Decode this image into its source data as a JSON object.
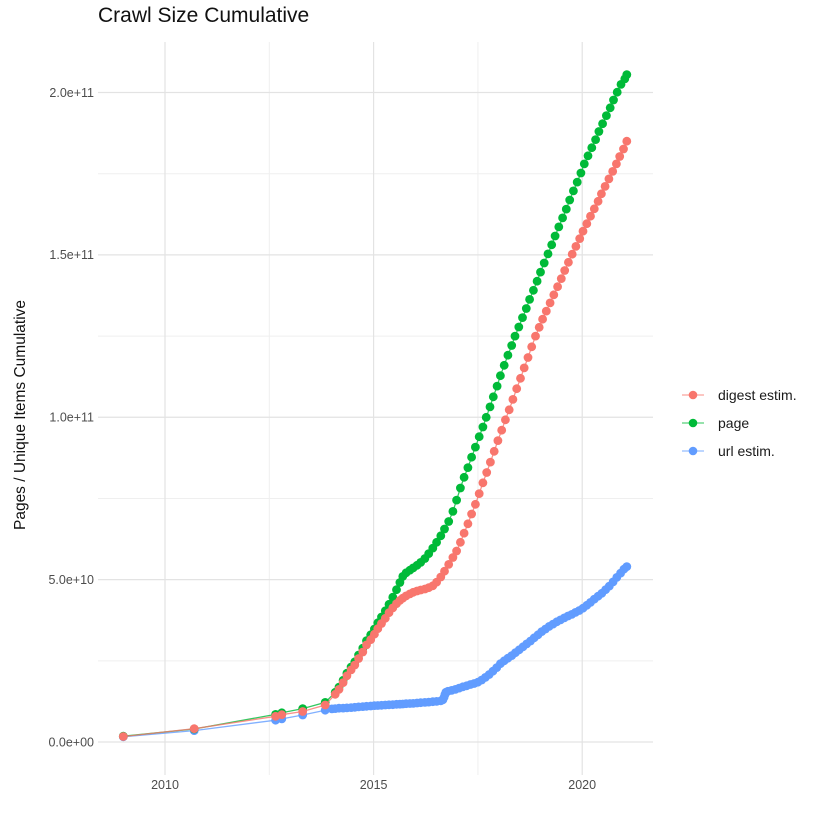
{
  "chart_data": {
    "type": "scatter",
    "title": "Crawl Size Cumulative",
    "xlabel": "",
    "ylabel": "Pages / Unique Items Cumulative",
    "value_units": "billions (1e9) of pages / unique items",
    "grid": true,
    "legend_position": "right",
    "x_axis": {
      "ticks": [
        {
          "label": "2010",
          "value": 2010
        },
        {
          "label": "2015",
          "value": 2015
        },
        {
          "label": "2020",
          "value": 2020
        }
      ],
      "minor": [
        2012.5,
        2017.5
      ],
      "range": [
        2008.4,
        2021.75
      ]
    },
    "y_axis": {
      "ticks": [
        {
          "label": "0.0e+00",
          "value": 0
        },
        {
          "label": "5.0e+10",
          "value": 50
        },
        {
          "label": "1.0e+11",
          "value": 100
        },
        {
          "label": "1.5e+11",
          "value": 150
        },
        {
          "label": "2.0e+11",
          "value": 200
        }
      ],
      "minor": [
        25,
        75,
        125,
        175
      ],
      "range": [
        -10,
        215
      ]
    },
    "series": [
      {
        "name": "digest estim.",
        "color": "#F8766D",
        "points": [
          [
            2009.0,
            1.7
          ],
          [
            2010.7,
            4.1
          ],
          [
            2012.65,
            7.9
          ],
          [
            2012.8,
            8.4
          ],
          [
            2013.3,
            9.4
          ],
          [
            2013.84,
            11.4
          ],
          [
            2014.08,
            14.7
          ],
          [
            2014.17,
            16.2
          ],
          [
            2014.27,
            18.3
          ],
          [
            2014.36,
            20.4
          ],
          [
            2014.46,
            22.2
          ],
          [
            2014.55,
            23.7
          ],
          [
            2014.64,
            25.7
          ],
          [
            2014.74,
            27.7
          ],
          [
            2014.83,
            29.9
          ],
          [
            2014.93,
            31.5
          ],
          [
            2015.02,
            33.2
          ],
          [
            2015.1,
            34.9
          ],
          [
            2015.19,
            36.5
          ],
          [
            2015.28,
            38.1
          ],
          [
            2015.37,
            39.8
          ],
          [
            2015.46,
            41.3
          ],
          [
            2015.55,
            42.6
          ],
          [
            2015.63,
            43.6
          ],
          [
            2015.7,
            44.3
          ],
          [
            2015.78,
            45.0
          ],
          [
            2015.87,
            45.6
          ],
          [
            2015.95,
            46.1
          ],
          [
            2016.04,
            46.5
          ],
          [
            2016.13,
            46.8
          ],
          [
            2016.23,
            47.1
          ],
          [
            2016.32,
            47.5
          ],
          [
            2016.42,
            48.1
          ],
          [
            2016.51,
            49.2
          ],
          [
            2016.61,
            50.8
          ],
          [
            2016.7,
            52.6
          ],
          [
            2016.8,
            54.7
          ],
          [
            2016.9,
            56.8
          ],
          [
            2016.99,
            58.8
          ],
          [
            2017.08,
            61.5
          ],
          [
            2017.17,
            64.3
          ],
          [
            2017.26,
            67.2
          ],
          [
            2017.35,
            70.2
          ],
          [
            2017.44,
            73.2
          ],
          [
            2017.53,
            76.5
          ],
          [
            2017.62,
            79.8
          ],
          [
            2017.71,
            83.0
          ],
          [
            2017.8,
            86.2
          ],
          [
            2017.89,
            89.5
          ],
          [
            2017.98,
            92.8
          ],
          [
            2018.07,
            96.0
          ],
          [
            2018.16,
            99.2
          ],
          [
            2018.25,
            102.3
          ],
          [
            2018.34,
            105.5
          ],
          [
            2018.43,
            108.8
          ],
          [
            2018.52,
            112.0
          ],
          [
            2018.61,
            115.2
          ],
          [
            2018.7,
            118.4
          ],
          [
            2018.79,
            121.7
          ],
          [
            2018.88,
            125.0
          ],
          [
            2018.97,
            127.7
          ],
          [
            2019.05,
            130.2
          ],
          [
            2019.14,
            132.7
          ],
          [
            2019.23,
            135.2
          ],
          [
            2019.32,
            137.7
          ],
          [
            2019.41,
            140.2
          ],
          [
            2019.5,
            142.7
          ],
          [
            2019.58,
            145.2
          ],
          [
            2019.67,
            147.7
          ],
          [
            2019.76,
            150.2
          ],
          [
            2019.85,
            152.6
          ],
          [
            2019.94,
            155.0
          ],
          [
            2020.02,
            157.3
          ],
          [
            2020.11,
            159.6
          ],
          [
            2020.2,
            161.9
          ],
          [
            2020.29,
            164.2
          ],
          [
            2020.38,
            166.5
          ],
          [
            2020.46,
            168.8
          ],
          [
            2020.55,
            171.1
          ],
          [
            2020.64,
            173.4
          ],
          [
            2020.73,
            175.7
          ],
          [
            2020.82,
            178.0
          ],
          [
            2020.9,
            180.3
          ],
          [
            2020.99,
            182.6
          ],
          [
            2021.07,
            185.0
          ]
        ]
      },
      {
        "name": "page",
        "color": "#00BA38",
        "points": [
          [
            2009.0,
            1.8
          ],
          [
            2010.7,
            4.0
          ],
          [
            2012.65,
            8.5
          ],
          [
            2012.8,
            9.0
          ],
          [
            2013.3,
            10.3
          ],
          [
            2013.84,
            12.2
          ],
          [
            2014.08,
            15.3
          ],
          [
            2014.17,
            16.9
          ],
          [
            2014.27,
            19.0
          ],
          [
            2014.36,
            21.2
          ],
          [
            2014.46,
            23.1
          ],
          [
            2014.55,
            24.7
          ],
          [
            2014.64,
            26.8
          ],
          [
            2014.74,
            28.9
          ],
          [
            2014.83,
            31.2
          ],
          [
            2014.93,
            33.0
          ],
          [
            2015.02,
            34.8
          ],
          [
            2015.1,
            36.7
          ],
          [
            2015.19,
            38.5
          ],
          [
            2015.28,
            40.4
          ],
          [
            2015.37,
            42.4
          ],
          [
            2015.46,
            44.6
          ],
          [
            2015.55,
            46.9
          ],
          [
            2015.63,
            49.1
          ],
          [
            2015.7,
            51.0
          ],
          [
            2015.78,
            52.1
          ],
          [
            2015.87,
            52.9
          ],
          [
            2015.95,
            53.6
          ],
          [
            2016.04,
            54.4
          ],
          [
            2016.13,
            55.3
          ],
          [
            2016.23,
            56.5
          ],
          [
            2016.32,
            58.0
          ],
          [
            2016.42,
            59.7
          ],
          [
            2016.51,
            61.5
          ],
          [
            2016.61,
            63.5
          ],
          [
            2016.7,
            65.6
          ],
          [
            2016.8,
            67.9
          ],
          [
            2016.9,
            71.0
          ],
          [
            2016.99,
            74.5
          ],
          [
            2017.08,
            78.2
          ],
          [
            2017.17,
            81.5
          ],
          [
            2017.26,
            84.5
          ],
          [
            2017.35,
            87.7
          ],
          [
            2017.44,
            90.8
          ],
          [
            2017.53,
            94.0
          ],
          [
            2017.62,
            97.0
          ],
          [
            2017.7,
            100.0
          ],
          [
            2017.79,
            103.2
          ],
          [
            2017.87,
            106.3
          ],
          [
            2017.96,
            109.6
          ],
          [
            2018.04,
            112.8
          ],
          [
            2018.13,
            116.0
          ],
          [
            2018.22,
            119.1
          ],
          [
            2018.31,
            122.1
          ],
          [
            2018.39,
            125.0
          ],
          [
            2018.48,
            127.8
          ],
          [
            2018.57,
            130.7
          ],
          [
            2018.66,
            133.5
          ],
          [
            2018.74,
            136.3
          ],
          [
            2018.83,
            139.1
          ],
          [
            2018.92,
            141.9
          ],
          [
            2019.0,
            144.7
          ],
          [
            2019.09,
            147.5
          ],
          [
            2019.18,
            150.3
          ],
          [
            2019.27,
            153.1
          ],
          [
            2019.35,
            155.8
          ],
          [
            2019.44,
            158.6
          ],
          [
            2019.53,
            161.4
          ],
          [
            2019.62,
            164.1
          ],
          [
            2019.7,
            166.9
          ],
          [
            2019.79,
            169.7
          ],
          [
            2019.88,
            172.4
          ],
          [
            2019.97,
            175.2
          ],
          [
            2020.05,
            178.0
          ],
          [
            2020.14,
            180.5
          ],
          [
            2020.23,
            183.0
          ],
          [
            2020.32,
            185.5
          ],
          [
            2020.4,
            188.0
          ],
          [
            2020.49,
            190.4
          ],
          [
            2020.58,
            192.9
          ],
          [
            2020.67,
            195.3
          ],
          [
            2020.75,
            197.7
          ],
          [
            2020.84,
            200.1
          ],
          [
            2020.93,
            202.5
          ],
          [
            2021.02,
            204.2
          ],
          [
            2021.07,
            205.5
          ]
        ]
      },
      {
        "name": "url estim.",
        "color": "#619CFF",
        "points": [
          [
            2009.0,
            1.6
          ],
          [
            2010.7,
            3.5
          ],
          [
            2012.65,
            6.7
          ],
          [
            2012.8,
            7.1
          ],
          [
            2013.3,
            8.3
          ],
          [
            2013.84,
            9.8
          ],
          [
            2014.0,
            10.2
          ],
          [
            2014.08,
            10.3
          ],
          [
            2014.17,
            10.4
          ],
          [
            2014.27,
            10.45
          ],
          [
            2014.36,
            10.5
          ],
          [
            2014.46,
            10.6
          ],
          [
            2014.55,
            10.7
          ],
          [
            2014.64,
            10.8
          ],
          [
            2014.74,
            10.9
          ],
          [
            2014.83,
            11.0
          ],
          [
            2014.93,
            11.1
          ],
          [
            2015.02,
            11.2
          ],
          [
            2015.1,
            11.25
          ],
          [
            2015.19,
            11.3
          ],
          [
            2015.28,
            11.4
          ],
          [
            2015.37,
            11.45
          ],
          [
            2015.46,
            11.5
          ],
          [
            2015.55,
            11.6
          ],
          [
            2015.63,
            11.65
          ],
          [
            2015.7,
            11.7
          ],
          [
            2015.78,
            11.8
          ],
          [
            2015.87,
            11.85
          ],
          [
            2015.95,
            11.9
          ],
          [
            2016.04,
            12.0
          ],
          [
            2016.13,
            12.1
          ],
          [
            2016.23,
            12.2
          ],
          [
            2016.32,
            12.3
          ],
          [
            2016.42,
            12.4
          ],
          [
            2016.51,
            12.5
          ],
          [
            2016.61,
            12.7
          ],
          [
            2016.66,
            13.0
          ],
          [
            2016.69,
            13.8
          ],
          [
            2016.71,
            14.6
          ],
          [
            2016.73,
            15.3
          ],
          [
            2016.78,
            15.6
          ],
          [
            2016.87,
            15.9
          ],
          [
            2016.96,
            16.2
          ],
          [
            2017.05,
            16.6
          ],
          [
            2017.14,
            17.0
          ],
          [
            2017.23,
            17.3
          ],
          [
            2017.32,
            17.7
          ],
          [
            2017.41,
            18.0
          ],
          [
            2017.5,
            18.4
          ],
          [
            2017.59,
            19.1
          ],
          [
            2017.68,
            19.9
          ],
          [
            2017.77,
            20.8
          ],
          [
            2017.86,
            21.8
          ],
          [
            2017.95,
            22.9
          ],
          [
            2018.04,
            24.1
          ],
          [
            2018.13,
            25.0
          ],
          [
            2018.22,
            25.8
          ],
          [
            2018.31,
            26.6
          ],
          [
            2018.4,
            27.5
          ],
          [
            2018.49,
            28.4
          ],
          [
            2018.58,
            29.3
          ],
          [
            2018.67,
            30.2
          ],
          [
            2018.76,
            31.1
          ],
          [
            2018.85,
            32.1
          ],
          [
            2018.94,
            33.0
          ],
          [
            2019.03,
            34.0
          ],
          [
            2019.12,
            34.8
          ],
          [
            2019.21,
            35.6
          ],
          [
            2019.3,
            36.3
          ],
          [
            2019.39,
            37.0
          ],
          [
            2019.48,
            37.6
          ],
          [
            2019.57,
            38.2
          ],
          [
            2019.66,
            38.8
          ],
          [
            2019.75,
            39.3
          ],
          [
            2019.84,
            39.9
          ],
          [
            2019.93,
            40.5
          ],
          [
            2020.02,
            41.2
          ],
          [
            2020.11,
            42.1
          ],
          [
            2020.2,
            43.0
          ],
          [
            2020.29,
            44.0
          ],
          [
            2020.38,
            44.9
          ],
          [
            2020.47,
            45.8
          ],
          [
            2020.56,
            46.9
          ],
          [
            2020.65,
            48.0
          ],
          [
            2020.74,
            49.3
          ],
          [
            2020.83,
            50.7
          ],
          [
            2020.92,
            52.0
          ],
          [
            2021.0,
            53.2
          ],
          [
            2021.07,
            54.0
          ]
        ]
      }
    ]
  }
}
